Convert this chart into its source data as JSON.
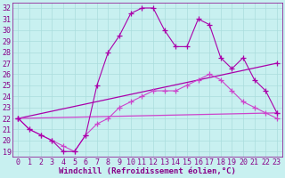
{
  "xlabel": "Windchill (Refroidissement éolien,°C)",
  "bg_color": "#c8f0f0",
  "line1_color": "#aa00aa",
  "line2_color": "#cc44cc",
  "line3_color": "#9900aa",
  "line4_color": "#cc44cc",
  "xmin": 0,
  "xmax": 23,
  "ymin": 19,
  "ymax": 32,
  "line1_x": [
    0,
    1,
    2,
    3,
    4,
    5,
    6,
    7,
    8,
    9,
    10,
    11,
    12,
    13,
    14,
    15,
    16,
    17,
    18,
    19,
    20,
    21,
    22,
    23
  ],
  "line1_y": [
    22.0,
    21.0,
    20.5,
    20.0,
    19.0,
    19.0,
    20.5,
    25.0,
    28.0,
    29.5,
    31.5,
    32.0,
    32.0,
    30.0,
    28.5,
    28.5,
    31.0,
    30.5,
    27.5,
    26.5,
    27.5,
    25.5,
    24.5,
    22.5
  ],
  "line2_x": [
    0,
    1,
    2,
    3,
    4,
    5,
    6,
    7,
    8,
    9,
    10,
    11,
    12,
    13,
    14,
    15,
    16,
    17,
    18,
    19,
    20,
    21,
    22,
    23
  ],
  "line2_y": [
    22.0,
    21.0,
    20.5,
    20.0,
    19.5,
    19.0,
    20.5,
    21.5,
    22.0,
    23.0,
    23.5,
    24.0,
    24.5,
    24.5,
    24.5,
    25.0,
    25.5,
    26.0,
    25.5,
    24.5,
    23.5,
    23.0,
    22.5,
    22.0
  ],
  "line3_x": [
    0,
    23
  ],
  "line3_y": [
    22.0,
    27.0
  ],
  "line4_x": [
    0,
    23
  ],
  "line4_y": [
    22.0,
    22.5
  ],
  "yticks": [
    19,
    20,
    21,
    22,
    23,
    24,
    25,
    26,
    27,
    28,
    29,
    30,
    31,
    32
  ],
  "xticks": [
    0,
    1,
    2,
    3,
    4,
    5,
    6,
    7,
    8,
    9,
    10,
    11,
    12,
    13,
    14,
    15,
    16,
    17,
    18,
    19,
    20,
    21,
    22,
    23
  ],
  "font_color": "#880088",
  "grid_color": "#aadddd",
  "tick_fontsize": 6,
  "xlabel_fontsize": 6.5
}
